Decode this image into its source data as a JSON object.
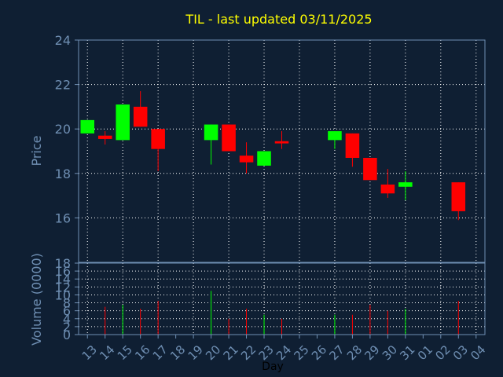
{
  "chart_data": [
    {
      "type": "candlestick",
      "title": "TIL - last updated 03/11/2025",
      "ylabel": "Price",
      "ylim": [
        14,
        24
      ],
      "yticks": [
        "16",
        "18",
        "20",
        "22",
        "24"
      ],
      "grid": true,
      "colors": {
        "up": "#00ff00",
        "down": "#ff0000",
        "title": "#ffff00",
        "axis_text": "#6f8fb3",
        "grid": "#ffffff",
        "background": "#0f1f33"
      },
      "candles": [
        {
          "day": "13",
          "open": 19.8,
          "high": 20.4,
          "low": 19.8,
          "close": 20.4
        },
        {
          "day": "14",
          "open": 19.7,
          "high": 19.9,
          "low": 19.3,
          "close": 19.55
        },
        {
          "day": "15",
          "open": 19.5,
          "high": 21.1,
          "low": 19.5,
          "close": 21.1
        },
        {
          "day": "16",
          "open": 21.0,
          "high": 21.7,
          "low": 20.1,
          "close": 20.1
        },
        {
          "day": "17",
          "open": 20.0,
          "high": 20.0,
          "low": 18.1,
          "close": 19.1
        },
        {
          "day": "20",
          "open": 19.5,
          "high": 20.2,
          "low": 18.4,
          "close": 20.2
        },
        {
          "day": "21",
          "open": 20.2,
          "high": 20.2,
          "low": 19.0,
          "close": 19.0
        },
        {
          "day": "22",
          "open": 18.8,
          "high": 19.4,
          "low": 18.0,
          "close": 18.5
        },
        {
          "day": "23",
          "open": 18.35,
          "high": 19.0,
          "low": 18.35,
          "close": 19.0
        },
        {
          "day": "24",
          "open": 19.45,
          "high": 19.9,
          "low": 19.1,
          "close": 19.35
        },
        {
          "day": "27",
          "open": 19.5,
          "high": 19.9,
          "low": 19.1,
          "close": 19.9
        },
        {
          "day": "28",
          "open": 19.8,
          "high": 19.8,
          "low": 18.3,
          "close": 18.7
        },
        {
          "day": "29",
          "open": 18.7,
          "high": 18.7,
          "low": 17.7,
          "close": 17.7
        },
        {
          "day": "30",
          "open": 17.5,
          "high": 18.2,
          "low": 16.9,
          "close": 17.1
        },
        {
          "day": "31",
          "open": 17.4,
          "high": 18.1,
          "low": 16.8,
          "close": 17.6
        },
        {
          "day": "03",
          "open": 17.6,
          "high": 17.6,
          "low": 15.9,
          "close": 16.3
        }
      ]
    },
    {
      "type": "bar",
      "ylabel": "Volume (0000)",
      "xlabel": "Day",
      "ylim": [
        0,
        18
      ],
      "yticks": [
        "0",
        "2",
        "4",
        "6",
        "8",
        "10",
        "12",
        "14",
        "16",
        "18"
      ],
      "categories": [
        "13",
        "14",
        "15",
        "16",
        "17",
        "18",
        "19",
        "20",
        "21",
        "22",
        "23",
        "24",
        "25",
        "26",
        "27",
        "28",
        "29",
        "30",
        "31",
        "01",
        "02",
        "03",
        "04"
      ],
      "series": [
        {
          "values": [
            {
              "day": "14",
              "value": 7,
              "color": "#ff0000"
            },
            {
              "day": "15",
              "value": 7.5,
              "color": "#00ff00"
            },
            {
              "day": "16",
              "value": 6.5,
              "color": "#ff0000"
            },
            {
              "day": "17",
              "value": 8.5,
              "color": "#ff0000"
            },
            {
              "day": "20",
              "value": 11,
              "color": "#00ff00"
            },
            {
              "day": "21",
              "value": 4,
              "color": "#ff0000"
            },
            {
              "day": "22",
              "value": 6.5,
              "color": "#ff0000"
            },
            {
              "day": "23",
              "value": 5,
              "color": "#00ff00"
            },
            {
              "day": "24",
              "value": 4,
              "color": "#ff0000"
            },
            {
              "day": "27",
              "value": 5,
              "color": "#00ff00"
            },
            {
              "day": "28",
              "value": 5,
              "color": "#ff0000"
            },
            {
              "day": "29",
              "value": 7.5,
              "color": "#ff0000"
            },
            {
              "day": "30",
              "value": 6,
              "color": "#ff0000"
            },
            {
              "day": "31",
              "value": 6.5,
              "color": "#00ff00"
            },
            {
              "day": "03",
              "value": 8.5,
              "color": "#ff0000"
            }
          ]
        }
      ]
    }
  ]
}
